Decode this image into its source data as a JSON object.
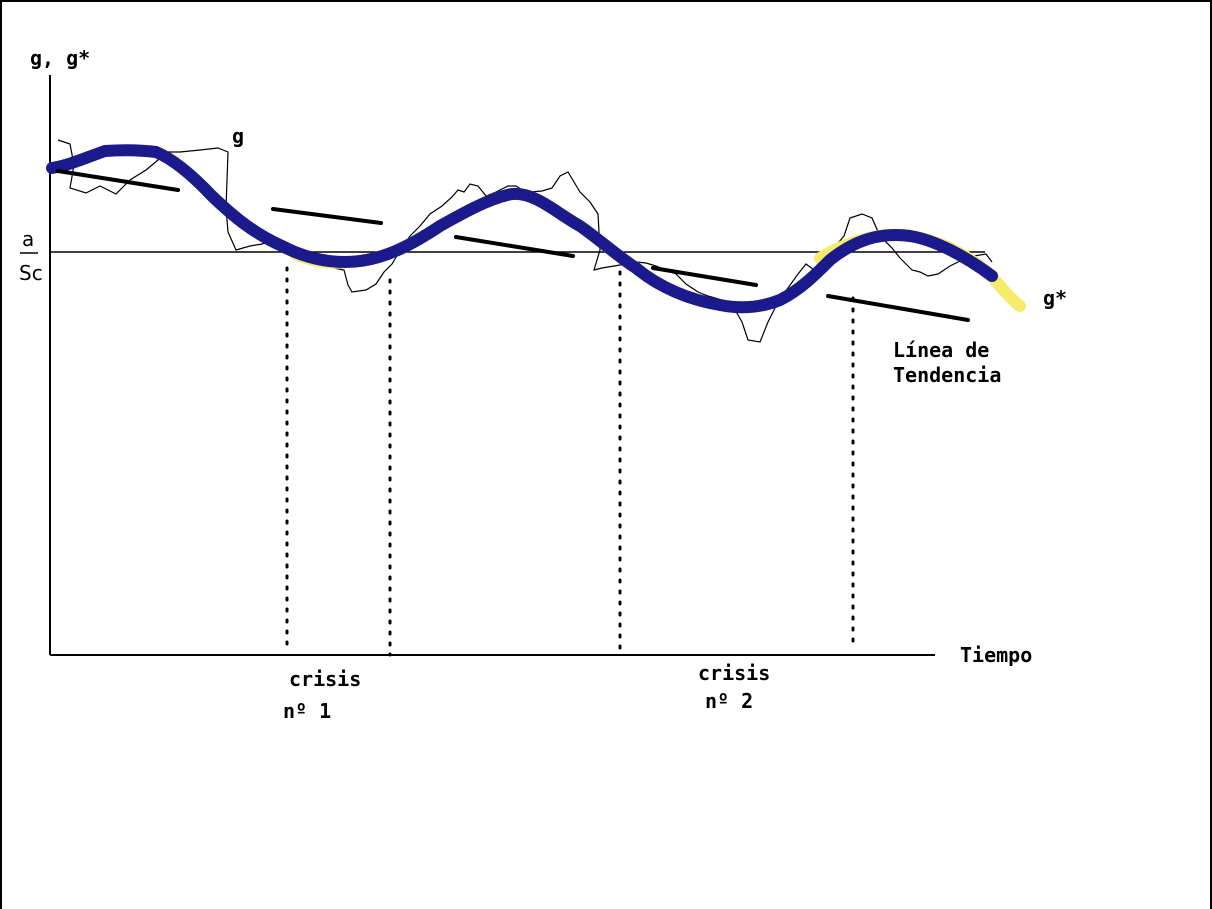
{
  "labels": {
    "y_axis": "g, g*",
    "x_axis": "Tiempo",
    "curve_g": "g",
    "curve_g_star": "g*",
    "ratio_numerator": "a",
    "ratio_denominator": "Sc",
    "trend_line": [
      "Línea de",
      "Tendencia"
    ],
    "crisis_1": [
      "crisis",
      "nº 1"
    ],
    "crisis_2": [
      "crisis",
      "nº 2"
    ]
  },
  "colors": {
    "g_star_curve": "#1a1a8c",
    "g_star_highlight": "#f5ec6a",
    "g_curve": "#000000",
    "trend_segments": "#000000",
    "axes": "#000000"
  }
}
